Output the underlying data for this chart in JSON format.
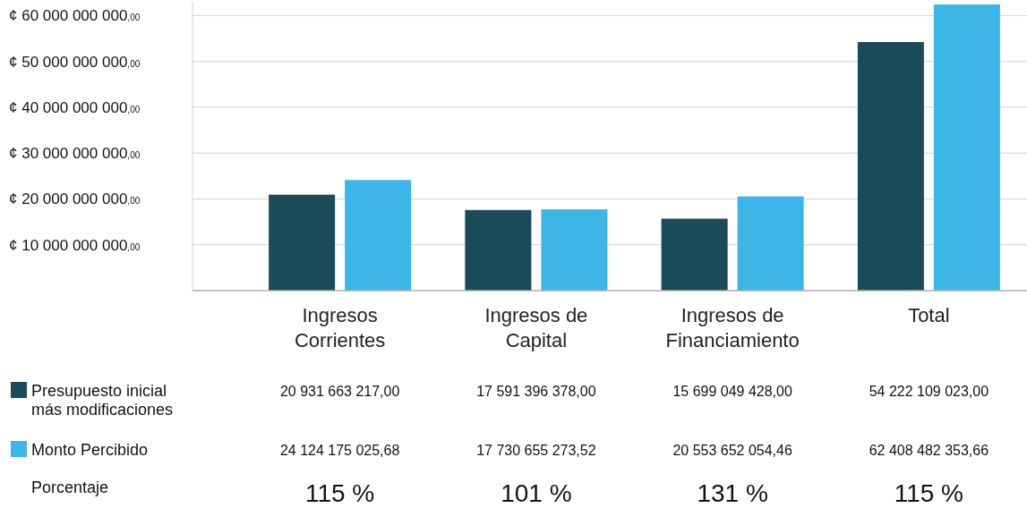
{
  "chart_data": {
    "type": "bar",
    "categories": [
      "Ingresos Corrientes",
      "Ingresos de Capital",
      "Ingresos de Financiamiento",
      "Total"
    ],
    "series": [
      {
        "name": "Presupuesto inicial más modificaciones",
        "color": "#1b4a59",
        "values": [
          20931663217.0,
          17591396378.0,
          15699049428.0,
          54222109023.0
        ],
        "value_labels": [
          "20 931 663 217,00",
          "17 591 396 378,00",
          "15 699 049 428,00",
          "54 222 109 023,00"
        ]
      },
      {
        "name": "Monto Percibido",
        "color": "#3db5e6",
        "values": [
          24124175025.68,
          17730655273.52,
          20553652054.46,
          62408482353.66
        ],
        "value_labels": [
          "24 124 175 025,68",
          "17 730 655 273,52",
          "20 553 652 054,46",
          "62 408 482 353,66"
        ]
      }
    ],
    "ylim": [
      0,
      63000000000
    ],
    "yticks": [
      {
        "value": 10000000000,
        "label": "¢ 10 000 000 000,00"
      },
      {
        "value": 20000000000,
        "label": "¢ 20 000 000 000,00"
      },
      {
        "value": 30000000000,
        "label": "¢ 30 000 000 000,00"
      },
      {
        "value": 40000000000,
        "label": "¢ 40 000 000 000,00"
      },
      {
        "value": 50000000000,
        "label": "¢ 50 000 000 000,00"
      },
      {
        "value": 60000000000,
        "label": "¢ 60 000 000 000,00"
      }
    ],
    "grid": "y",
    "legend": "bottom",
    "annotations": [
      "Porcentaje",
      "115 %",
      "101 %",
      "131 %",
      "115 %"
    ]
  }
}
